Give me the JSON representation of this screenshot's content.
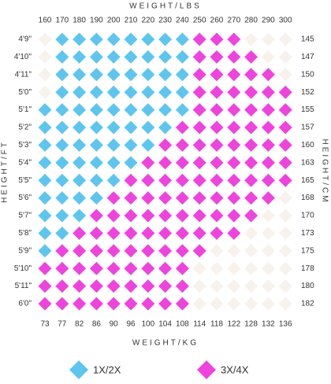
{
  "chart_data": {
    "type": "grid",
    "title_top": "WEIGHT/LBS",
    "title_bottom": "WEIGHT/KG",
    "title_left": "HEIGHT/FT",
    "title_right": "HEIGHT/CM",
    "x_top": [
      160,
      170,
      180,
      190,
      200,
      210,
      220,
      230,
      240,
      250,
      260,
      270,
      280,
      290,
      300
    ],
    "x_bottom": [
      73,
      77,
      82,
      86,
      90,
      96,
      100,
      104,
      108,
      114,
      118,
      122,
      128,
      132,
      136
    ],
    "y_left": [
      "4'9\"",
      "4'10\"",
      "4'11\"",
      "5'0\"",
      "5'1\"",
      "5'2\"",
      "5'3\"",
      "5'4\"",
      "5'5\"",
      "5'6\"",
      "5'7\"",
      "5'8\"",
      "5'9\"",
      "5'10\"",
      "5'11\"",
      "6'0\""
    ],
    "y_right": [
      145,
      147,
      150,
      152,
      155,
      157,
      160,
      163,
      165,
      168,
      170,
      173,
      175,
      178,
      180,
      182
    ],
    "series": [
      {
        "name": "1X/2X",
        "color": "#5ec6ee"
      },
      {
        "name": "3X/4X",
        "color": "#ee44dd"
      }
    ],
    "empty_color": "#f8f2ec",
    "cells": [
      [
        null,
        "1X/2X",
        "1X/2X",
        "1X/2X",
        "1X/2X",
        "1X/2X",
        "1X/2X",
        "1X/2X",
        "1X/2X",
        "3X/4X",
        "3X/4X",
        "3X/4X",
        null,
        null,
        null
      ],
      [
        null,
        "1X/2X",
        "1X/2X",
        "1X/2X",
        "1X/2X",
        "1X/2X",
        "1X/2X",
        "1X/2X",
        "1X/2X",
        "3X/4X",
        "3X/4X",
        "3X/4X",
        "3X/4X",
        null,
        null
      ],
      [
        null,
        "1X/2X",
        "1X/2X",
        "1X/2X",
        "1X/2X",
        "1X/2X",
        "1X/2X",
        "1X/2X",
        "1X/2X",
        "3X/4X",
        "3X/4X",
        "3X/4X",
        "3X/4X",
        "3X/4X",
        null
      ],
      [
        null,
        "1X/2X",
        "1X/2X",
        "1X/2X",
        "1X/2X",
        "1X/2X",
        "1X/2X",
        "1X/2X",
        "1X/2X",
        "3X/4X",
        "3X/4X",
        "3X/4X",
        "3X/4X",
        "3X/4X",
        "3X/4X"
      ],
      [
        "1X/2X",
        "1X/2X",
        "1X/2X",
        "1X/2X",
        "1X/2X",
        "1X/2X",
        "1X/2X",
        "1X/2X",
        "1X/2X",
        "3X/4X",
        "3X/4X",
        "3X/4X",
        "3X/4X",
        "3X/4X",
        "3X/4X"
      ],
      [
        "1X/2X",
        "1X/2X",
        "1X/2X",
        "1X/2X",
        "1X/2X",
        "1X/2X",
        "1X/2X",
        "1X/2X",
        "3X/4X",
        "3X/4X",
        "3X/4X",
        "3X/4X",
        "3X/4X",
        "3X/4X",
        "3X/4X"
      ],
      [
        "1X/2X",
        "1X/2X",
        "1X/2X",
        "1X/2X",
        "1X/2X",
        "1X/2X",
        "1X/2X",
        "3X/4X",
        "3X/4X",
        "3X/4X",
        "3X/4X",
        "3X/4X",
        "3X/4X",
        "3X/4X",
        "3X/4X"
      ],
      [
        "1X/2X",
        "1X/2X",
        "1X/2X",
        "1X/2X",
        "1X/2X",
        "1X/2X",
        "3X/4X",
        "3X/4X",
        "3X/4X",
        "3X/4X",
        "3X/4X",
        "3X/4X",
        "3X/4X",
        "3X/4X",
        "3X/4X"
      ],
      [
        "1X/2X",
        "1X/2X",
        "1X/2X",
        "1X/2X",
        "1X/2X",
        "3X/4X",
        "3X/4X",
        "3X/4X",
        "3X/4X",
        "3X/4X",
        "3X/4X",
        "3X/4X",
        "3X/4X",
        "3X/4X",
        "3X/4X"
      ],
      [
        "1X/2X",
        "1X/2X",
        "1X/2X",
        "1X/2X",
        "3X/4X",
        "3X/4X",
        "3X/4X",
        "3X/4X",
        "3X/4X",
        "3X/4X",
        "3X/4X",
        "3X/4X",
        "3X/4X",
        "3X/4X",
        null
      ],
      [
        "1X/2X",
        "1X/2X",
        "1X/2X",
        "3X/4X",
        "3X/4X",
        "3X/4X",
        "3X/4X",
        "3X/4X",
        "3X/4X",
        "3X/4X",
        "3X/4X",
        "3X/4X",
        "3X/4X",
        null,
        null
      ],
      [
        "1X/2X",
        "1X/2X",
        "3X/4X",
        "3X/4X",
        "3X/4X",
        "3X/4X",
        "3X/4X",
        "3X/4X",
        "3X/4X",
        "3X/4X",
        "3X/4X",
        "3X/4X",
        null,
        null,
        null
      ],
      [
        "1X/2X",
        "3X/4X",
        "3X/4X",
        "3X/4X",
        "3X/4X",
        "3X/4X",
        "3X/4X",
        "3X/4X",
        "3X/4X",
        "3X/4X",
        null,
        null,
        null,
        null,
        null
      ],
      [
        "3X/4X",
        "3X/4X",
        "3X/4X",
        "3X/4X",
        "3X/4X",
        "3X/4X",
        "3X/4X",
        "3X/4X",
        "3X/4X",
        null,
        null,
        null,
        null,
        null,
        null
      ],
      [
        "3X/4X",
        "3X/4X",
        "3X/4X",
        "3X/4X",
        "3X/4X",
        "3X/4X",
        "3X/4X",
        "3X/4X",
        "3X/4X",
        null,
        null,
        null,
        null,
        null,
        null
      ],
      [
        "3X/4X",
        "3X/4X",
        "3X/4X",
        "3X/4X",
        "3X/4X",
        "3X/4X",
        "3X/4X",
        "3X/4X",
        "3X/4X",
        null,
        null,
        null,
        null,
        null,
        null
      ]
    ]
  }
}
